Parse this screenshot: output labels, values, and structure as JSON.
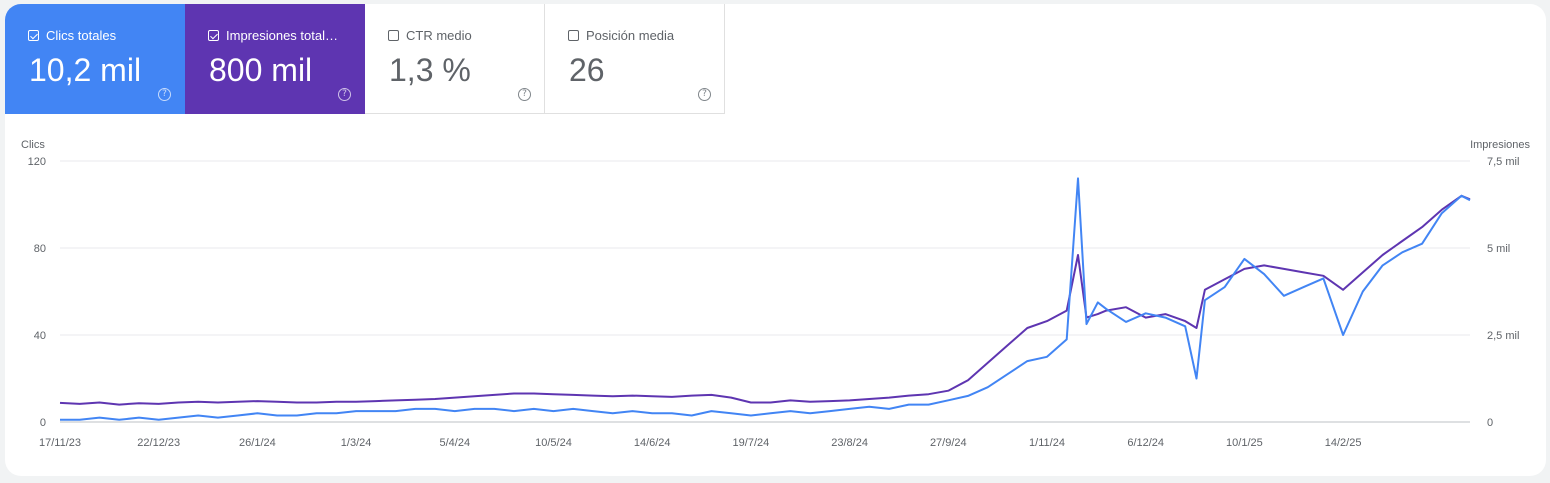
{
  "metrics": [
    {
      "label": "Clics totales",
      "value": "10,2 mil",
      "checked": true,
      "help": "?"
    },
    {
      "label": "Impresiones total…",
      "value": "800 mil",
      "checked": true,
      "help": "?"
    },
    {
      "label": "CTR medio",
      "value": "1,3 %",
      "checked": false,
      "help": "?"
    },
    {
      "label": "Posición media",
      "value": "26",
      "checked": false,
      "help": "?"
    }
  ],
  "colors": {
    "clicks": "#4285f4",
    "impressions": "#5e35b1",
    "grid": "#e8eaed",
    "axis_text": "#5f6368"
  },
  "chart_data": {
    "type": "line",
    "left_axis": {
      "label": "Clics",
      "ticks": [
        "120",
        "80",
        "40",
        "0"
      ],
      "ylim": [
        0,
        120
      ]
    },
    "right_axis": {
      "label": "Impresiones",
      "ticks": [
        "7,5 mil",
        "5 mil",
        "2,5 mil",
        "0"
      ],
      "ylim": [
        0,
        7500
      ]
    },
    "x_tick_labels": [
      "17/11/23",
      "22/12/23",
      "26/1/24",
      "1/3/24",
      "5/4/24",
      "10/5/24",
      "14/6/24",
      "19/7/24",
      "23/8/24",
      "27/9/24",
      "1/11/24",
      "6/12/24",
      "10/1/25",
      "14/2/25"
    ],
    "x_range": [
      "17/11/23",
      "31/3/25"
    ],
    "grid": true,
    "series": [
      {
        "name": "Clics totales",
        "axis": "left",
        "x": [
          "17/11/23",
          "24/11/23",
          "1/12/23",
          "8/12/23",
          "15/12/23",
          "22/12/23",
          "29/12/23",
          "5/1/24",
          "12/1/24",
          "19/1/24",
          "26/1/24",
          "2/2/24",
          "9/2/24",
          "16/2/24",
          "23/2/24",
          "1/3/24",
          "8/3/24",
          "15/3/24",
          "22/3/24",
          "29/3/24",
          "5/4/24",
          "12/4/24",
          "19/4/24",
          "26/4/24",
          "3/5/24",
          "10/5/24",
          "17/5/24",
          "24/5/24",
          "31/5/24",
          "7/6/24",
          "14/6/24",
          "21/6/24",
          "28/6/24",
          "5/7/24",
          "12/7/24",
          "19/7/24",
          "26/7/24",
          "2/8/24",
          "9/8/24",
          "16/8/24",
          "23/8/24",
          "30/8/24",
          "6/9/24",
          "13/9/24",
          "20/9/24",
          "27/9/24",
          "4/10/24",
          "11/10/24",
          "18/10/24",
          "25/10/24",
          "1/11/24",
          "8/11/24",
          "12/11/24",
          "15/11/24",
          "19/11/24",
          "22/11/24",
          "29/11/24",
          "6/12/24",
          "13/12/24",
          "20/12/24",
          "24/12/24",
          "27/12/24",
          "3/1/25",
          "10/1/25",
          "17/1/25",
          "24/1/25",
          "31/1/25",
          "7/2/25",
          "14/2/25",
          "21/2/25",
          "28/2/25",
          "7/3/25",
          "14/3/25",
          "21/3/25",
          "28/3/25",
          "31/3/25"
        ],
        "values": [
          1,
          1,
          2,
          1,
          2,
          1,
          2,
          3,
          2,
          3,
          4,
          3,
          3,
          4,
          4,
          5,
          5,
          5,
          6,
          6,
          5,
          6,
          6,
          5,
          6,
          5,
          6,
          5,
          4,
          5,
          4,
          4,
          3,
          5,
          4,
          3,
          4,
          5,
          4,
          5,
          6,
          7,
          6,
          8,
          8,
          10,
          12,
          16,
          22,
          28,
          30,
          38,
          112,
          45,
          55,
          52,
          46,
          50,
          48,
          44,
          20,
          56,
          62,
          75,
          68,
          58,
          62,
          66,
          40,
          60,
          72,
          78,
          82,
          96,
          104,
          102
        ]
      },
      {
        "name": "Impresiones totales",
        "axis": "right",
        "x": [
          "17/11/23",
          "24/11/23",
          "1/12/23",
          "8/12/23",
          "15/12/23",
          "22/12/23",
          "29/12/23",
          "5/1/24",
          "12/1/24",
          "19/1/24",
          "26/1/24",
          "2/2/24",
          "9/2/24",
          "16/2/24",
          "23/2/24",
          "1/3/24",
          "8/3/24",
          "15/3/24",
          "22/3/24",
          "29/3/24",
          "5/4/24",
          "12/4/24",
          "19/4/24",
          "26/4/24",
          "3/5/24",
          "10/5/24",
          "17/5/24",
          "24/5/24",
          "31/5/24",
          "7/6/24",
          "14/6/24",
          "21/6/24",
          "28/6/24",
          "5/7/24",
          "12/7/24",
          "19/7/24",
          "26/7/24",
          "2/8/24",
          "9/8/24",
          "16/8/24",
          "23/8/24",
          "30/8/24",
          "6/9/24",
          "13/9/24",
          "20/9/24",
          "27/9/24",
          "4/10/24",
          "11/10/24",
          "18/10/24",
          "25/10/24",
          "1/11/24",
          "8/11/24",
          "12/11/24",
          "15/11/24",
          "19/11/24",
          "22/11/24",
          "29/11/24",
          "6/12/24",
          "13/12/24",
          "20/12/24",
          "24/12/24",
          "27/12/24",
          "3/1/25",
          "10/1/25",
          "17/1/25",
          "24/1/25",
          "31/1/25",
          "7/2/25",
          "14/2/25",
          "21/2/25",
          "28/2/25",
          "7/3/25",
          "14/3/25",
          "21/3/25",
          "28/3/25",
          "31/3/25"
        ],
        "values": [
          550,
          520,
          560,
          500,
          540,
          520,
          560,
          580,
          560,
          580,
          600,
          580,
          560,
          560,
          580,
          580,
          600,
          620,
          640,
          660,
          700,
          740,
          780,
          820,
          820,
          800,
          780,
          760,
          740,
          760,
          740,
          720,
          760,
          780,
          700,
          560,
          560,
          620,
          580,
          600,
          620,
          660,
          700,
          760,
          800,
          900,
          1200,
          1700,
          2200,
          2700,
          2900,
          3200,
          4800,
          3000,
          3100,
          3200,
          3300,
          3000,
          3100,
          2900,
          2700,
          3800,
          4100,
          4400,
          4500,
          4400,
          4300,
          4200,
          3800,
          4300,
          4800,
          5200,
          5600,
          6100,
          6500,
          6400
        ]
      }
    ]
  }
}
